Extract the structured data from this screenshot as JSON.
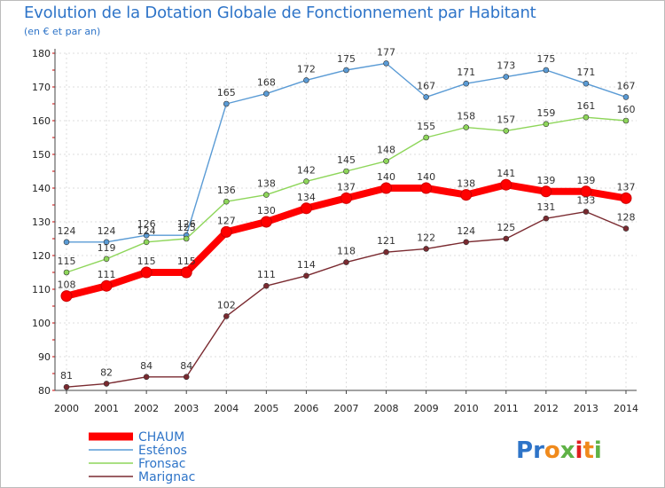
{
  "header": {
    "title": "Evolution de la Dotation Globale de Fonctionnement par Habitant",
    "subtitle": "(en € et par an)"
  },
  "brand": {
    "logo_text": "Proxiti"
  },
  "chart_data": {
    "type": "line",
    "title": "Evolution de la Dotation Globale de Fonctionnement par Habitant",
    "subtitle": "(en € et par an)",
    "xlabel": "",
    "ylabel": "",
    "ylim": [
      80,
      180
    ],
    "yticks": [
      80,
      90,
      100,
      110,
      120,
      130,
      140,
      150,
      160,
      170,
      180
    ],
    "grid": true,
    "legend_position": "bottom-left",
    "x": [
      "2000",
      "2001",
      "2002",
      "2003",
      "2004",
      "2005",
      "2006",
      "2007",
      "2008",
      "2009",
      "2010",
      "2011",
      "2012",
      "2013",
      "2014"
    ],
    "series": [
      {
        "name": "Esténos",
        "color": "#5a9bd5",
        "values": [
          124,
          124,
          126,
          126,
          165,
          168,
          172,
          175,
          177,
          167,
          171,
          173,
          175,
          171,
          167
        ]
      },
      {
        "name": "Fronsac",
        "color": "#8ed65a",
        "values": [
          115,
          119,
          124,
          125,
          136,
          138,
          142,
          145,
          148,
          155,
          158,
          157,
          159,
          161,
          160
        ]
      },
      {
        "name": "Marignac",
        "color": "#7a2a30",
        "values": [
          81,
          82,
          84,
          84,
          102,
          111,
          114,
          118,
          121,
          122,
          124,
          125,
          131,
          133,
          128
        ]
      },
      {
        "name": "CHAUM",
        "color": "#ff0000",
        "values": [
          108,
          111,
          115,
          115,
          127,
          130,
          134,
          137,
          140,
          140,
          138,
          141,
          139,
          139,
          137
        ]
      }
    ],
    "legend_order": [
      "CHAUM",
      "Esténos",
      "Fronsac",
      "Marignac"
    ]
  }
}
